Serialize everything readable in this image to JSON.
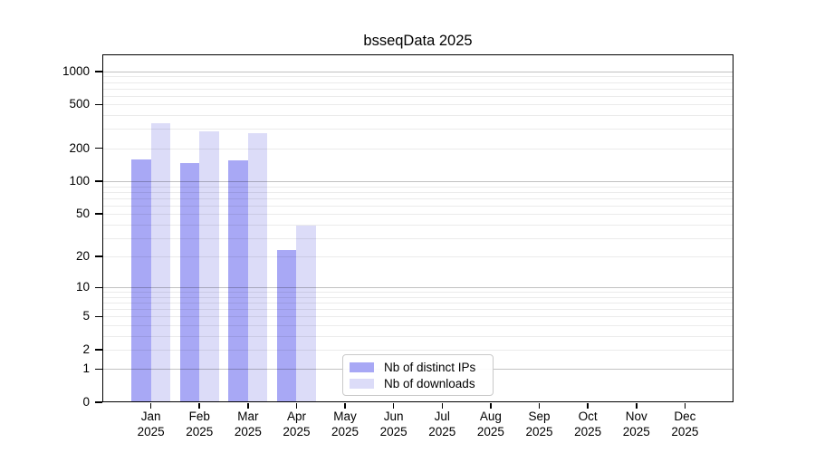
{
  "chart_data": {
    "type": "bar",
    "title": "bsseqData 2025",
    "categories": [
      "Jan",
      "Feb",
      "Mar",
      "Apr",
      "May",
      "Jun",
      "Jul",
      "Aug",
      "Sep",
      "Oct",
      "Nov",
      "Dec"
    ],
    "x_axis": {
      "year_label": "2025"
    },
    "series": [
      {
        "name": "Nb of distinct IPs",
        "color": "#a8a8f5",
        "values": [
          158,
          148,
          155,
          23,
          0,
          0,
          0,
          0,
          0,
          0,
          0,
          0
        ]
      },
      {
        "name": "Nb of downloads",
        "color": "#dcdcf8",
        "values": [
          340,
          285,
          275,
          39,
          0,
          0,
          0,
          0,
          0,
          0,
          0,
          0
        ]
      }
    ],
    "y_axis": {
      "scale": "log10(1+value)",
      "tick_values": [
        0,
        1,
        2,
        5,
        10,
        20,
        50,
        100,
        200,
        500,
        1000
      ],
      "max_value": 1430
    },
    "grid": "horizontal major+minor, drawn over bars",
    "legend_position": "inside bottom-center"
  }
}
